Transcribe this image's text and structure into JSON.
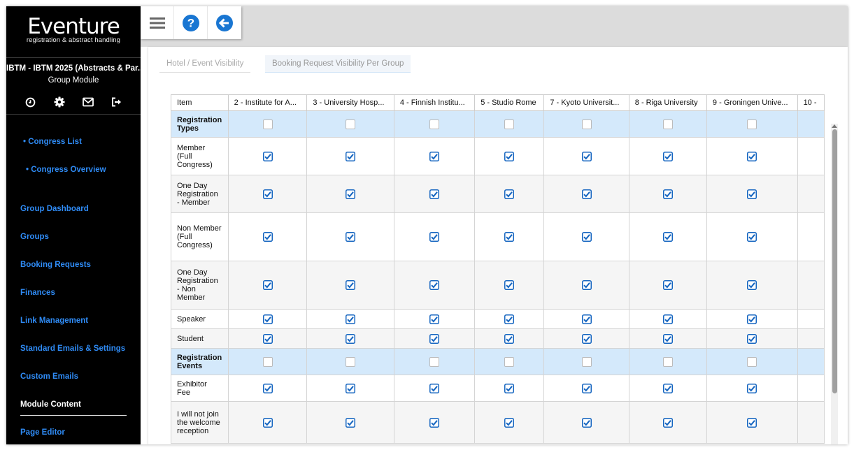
{
  "brand": {
    "name": "Eventure",
    "tagline": "registration & abstract handling"
  },
  "sidebar": {
    "congress": "IBTM - IBTM 2025 (Abstracts & Par...",
    "module": "Group Module",
    "icons": [
      "clock-icon",
      "gear-icon",
      "mail-icon",
      "logout-icon"
    ],
    "top_links": [
      "• Congress List",
      "• Congress Overview"
    ],
    "nav": [
      "Group Dashboard",
      "Groups",
      "Booking Requests",
      "Finances",
      "Link Management",
      "Standard Emails & Settings",
      "Custom Emails"
    ],
    "active": "Module Content",
    "after": [
      "Page Editor"
    ]
  },
  "toolbar": {
    "icons": [
      "menu-icon",
      "help-icon",
      "back-icon"
    ]
  },
  "tabs": [
    "Hotel / Event Visibility",
    "Booking Request Visibility Per Group"
  ],
  "table": {
    "columns": [
      "Item",
      "2 - Institute for A...",
      "3 - University Hosp...",
      "4 - Finnish Institu...",
      "5 - Studio Rome",
      "7 - Kyoto Universit...",
      "8 - Riga University",
      "9 - Groningen Unive...",
      "10 -"
    ],
    "rows": [
      {
        "label": "Registration Types",
        "type": "section"
      },
      {
        "label": "Member (Full Congress)",
        "type": "item",
        "checked": true
      },
      {
        "label": "One Day Registration - Member",
        "type": "item",
        "checked": true
      },
      {
        "label": "Non Member (Full Congress)",
        "type": "item",
        "checked": true
      },
      {
        "label": "One Day Registration - Non Member",
        "type": "item",
        "checked": true
      },
      {
        "label": "Speaker",
        "type": "item",
        "checked": true
      },
      {
        "label": "Student",
        "type": "item",
        "checked": true
      },
      {
        "label": "Registration Events",
        "type": "section"
      },
      {
        "label": "Exhibitor Fee",
        "type": "item",
        "checked": true
      },
      {
        "label": "I will not join the welcome reception",
        "type": "item",
        "checked": true
      }
    ]
  },
  "colors": {
    "accent": "#2f8bf5",
    "checkbox": "#1565c0",
    "section_bg": "#d4e9fb"
  }
}
